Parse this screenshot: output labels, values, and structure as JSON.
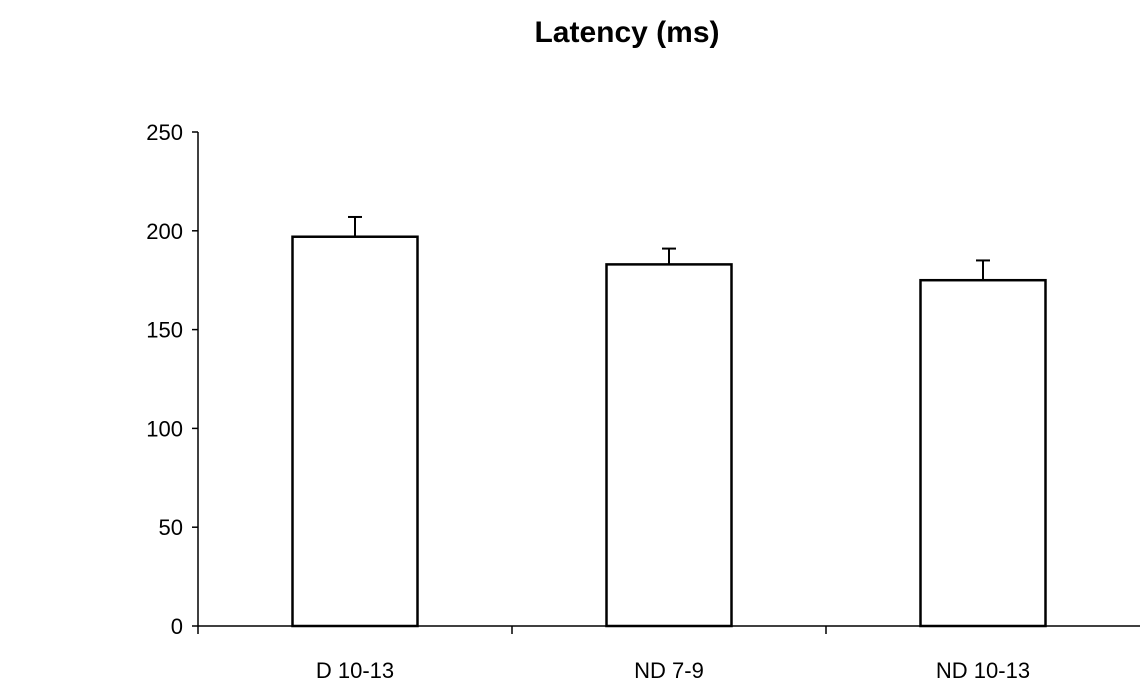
{
  "chart_data": {
    "type": "bar",
    "title": "Latency (ms)",
    "xlabel": "",
    "ylabel": "",
    "ylim": [
      0,
      250
    ],
    "yticks": [
      0,
      50,
      100,
      150,
      200,
      250
    ],
    "grid": false,
    "categories": [
      "D 10-13",
      "ND 7-9",
      "ND 10-13"
    ],
    "values": [
      197,
      183,
      175
    ],
    "error_upper": [
      10,
      8,
      10
    ],
    "colors": {
      "bar_fill": "#ffffff",
      "bar_stroke": "#000000",
      "axis": "#000000"
    }
  }
}
